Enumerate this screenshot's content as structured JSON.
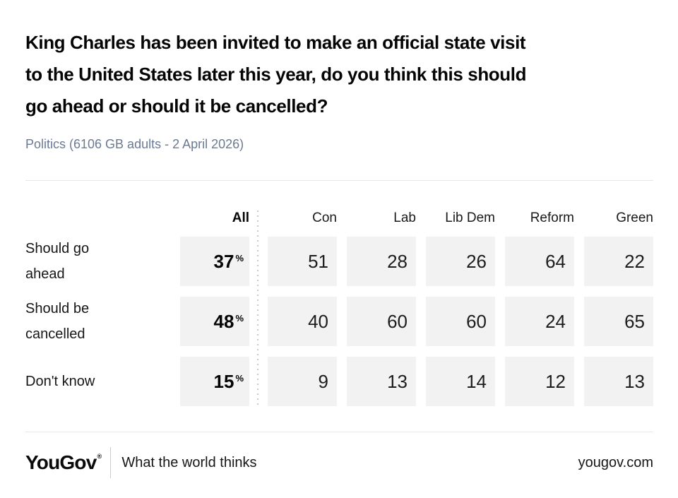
{
  "title": "King Charles has been invited to make an official state visit\nto the United States later this year, do you think this should\ngo ahead or should it be cancelled?",
  "subtitle": "Politics (6106 GB adults - 2 April 2026)",
  "chart_data": {
    "type": "table",
    "title": "King Charles has been invited to make an official state visit to the United States later this year, do you think this should go ahead or should it be cancelled?",
    "subtitle": "Politics (6106 GB adults - 2 April 2026)",
    "columns": [
      "All",
      "Con",
      "Lab",
      "Lib Dem",
      "Reform",
      "Green"
    ],
    "rows": [
      {
        "label": "Should go ahead",
        "values": [
          37,
          51,
          28,
          26,
          64,
          22
        ]
      },
      {
        "label": "Should be cancelled",
        "values": [
          48,
          40,
          60,
          60,
          24,
          65
        ]
      },
      {
        "label": "Don't know",
        "values": [
          15,
          9,
          13,
          14,
          12,
          13
        ]
      }
    ],
    "unit": "%",
    "note": "All column shown in bold with % sign; party columns show plain percentages"
  },
  "table": {
    "all_label": "All",
    "percent_sign": "%",
    "party_columns": [
      "Con",
      "Lab",
      "Lib Dem",
      "Reform",
      "Green"
    ],
    "rows": [
      {
        "label": "Should go ahead",
        "all": "37",
        "values": [
          "51",
          "28",
          "26",
          "64",
          "22"
        ]
      },
      {
        "label": "Should be cancelled",
        "all": "48",
        "values": [
          "40",
          "60",
          "60",
          "24",
          "65"
        ]
      },
      {
        "label": "Don't know",
        "all": "15",
        "values": [
          "9",
          "13",
          "14",
          "12",
          "13"
        ]
      }
    ]
  },
  "footer": {
    "logo": "YouGov",
    "registered_mark": "®",
    "tagline": "What the world thinks",
    "website": "yougov.com"
  },
  "colors": {
    "cell_background": "#f2f2f3",
    "subtitle_text": "#6b7a94",
    "divider": "#e7e7e7",
    "dotted_separator": "#c9c9c9",
    "text": "#0a0a0a"
  }
}
